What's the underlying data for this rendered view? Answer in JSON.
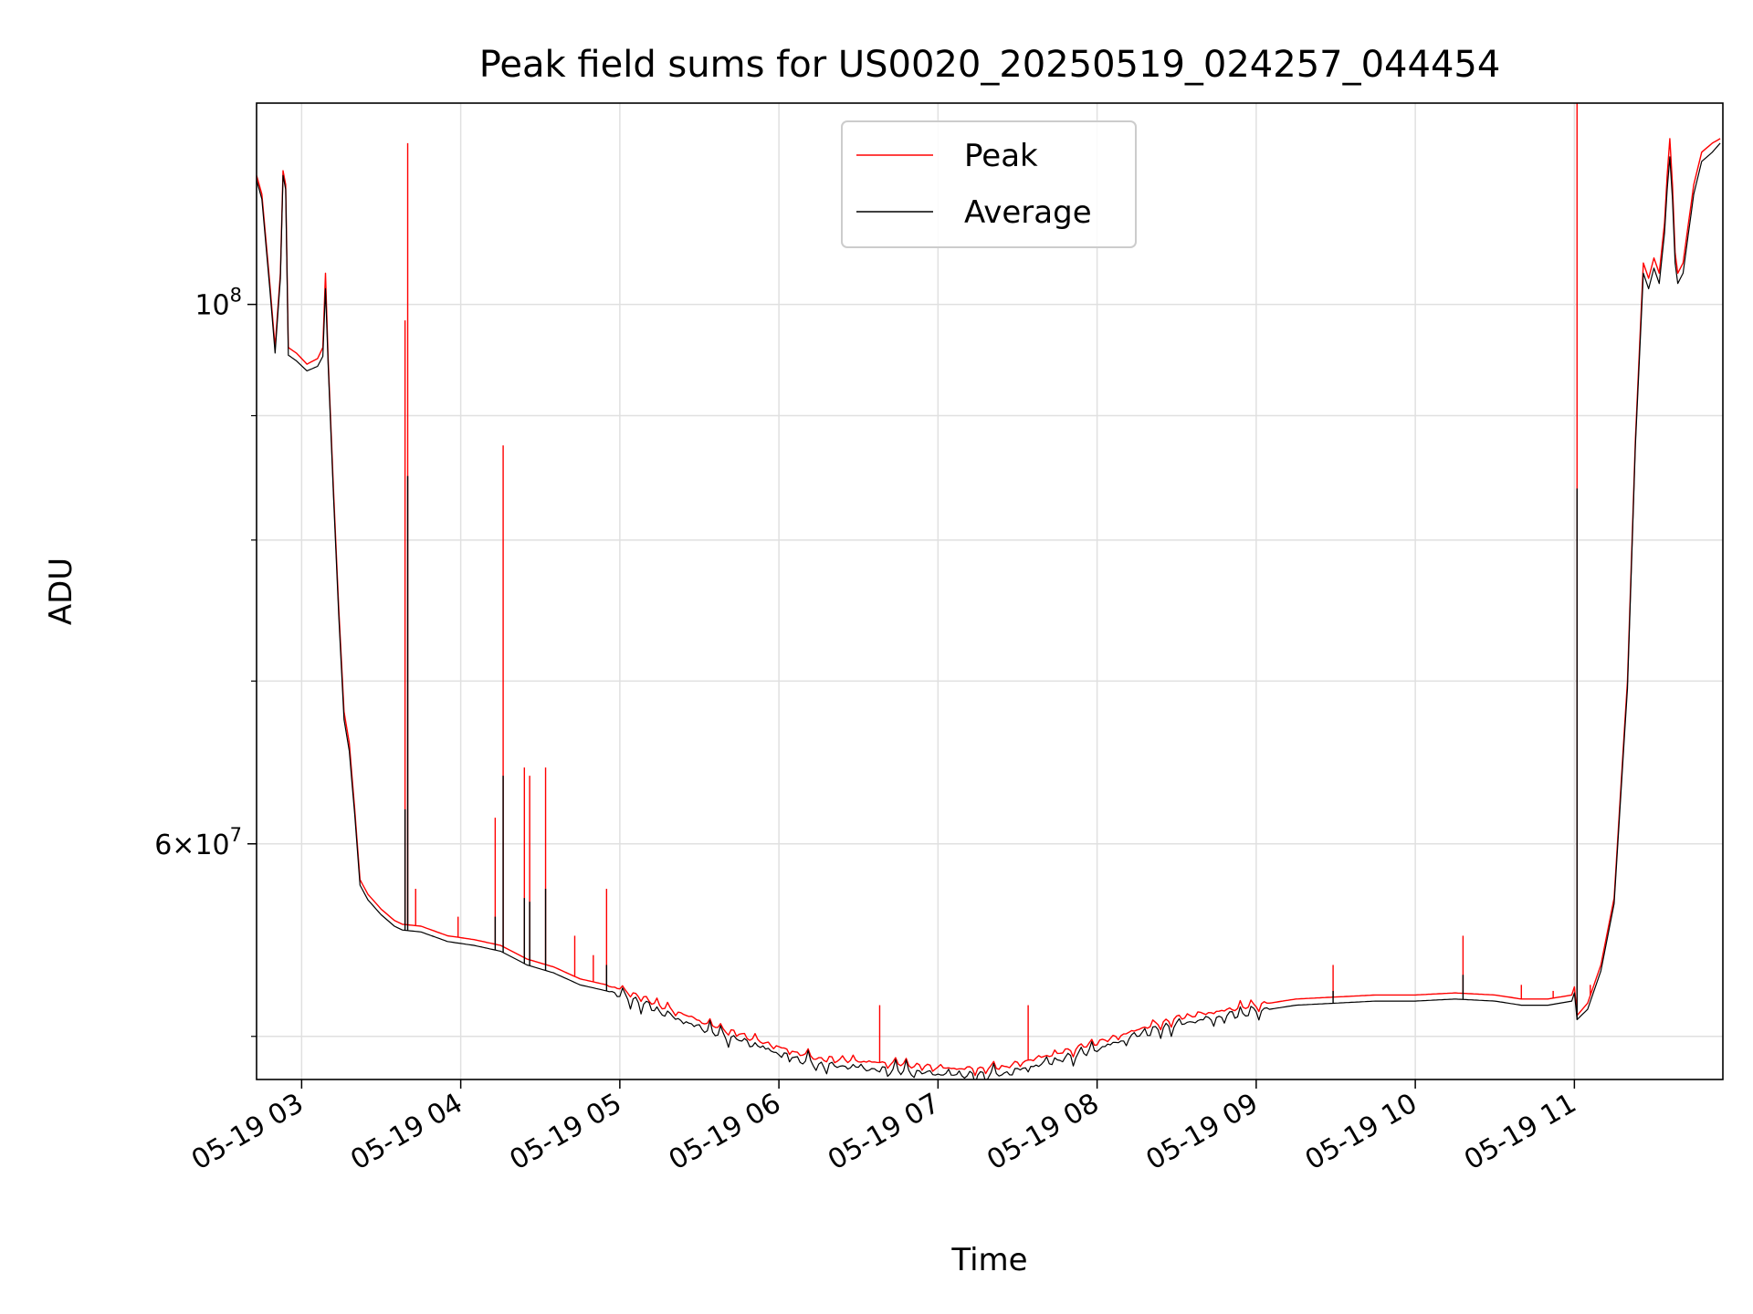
{
  "chart_data": {
    "type": "line",
    "title": "Peak field sums for US0020_20250519_024257_044454",
    "xlabel": "Time",
    "ylabel": "ADU",
    "y_scale": "log",
    "grid": true,
    "legend_position": "top-center",
    "xlim": [
      "2025-05-19 02:43",
      "2025-05-19 11:56"
    ],
    "ylim": [
      48000000,
      121000000
    ],
    "x_ticks": [
      {
        "time": "2025-05-19 03:00",
        "label": "05-19 03"
      },
      {
        "time": "2025-05-19 04:00",
        "label": "05-19 04"
      },
      {
        "time": "2025-05-19 05:00",
        "label": "05-19 05"
      },
      {
        "time": "2025-05-19 06:00",
        "label": "05-19 06"
      },
      {
        "time": "2025-05-19 07:00",
        "label": "05-19 07"
      },
      {
        "time": "2025-05-19 08:00",
        "label": "05-19 08"
      },
      {
        "time": "2025-05-19 09:00",
        "label": "05-19 09"
      },
      {
        "time": "2025-05-19 10:00",
        "label": "05-19 10"
      },
      {
        "time": "2025-05-19 11:00",
        "label": "05-19 11"
      }
    ],
    "y_major_ticks": [
      {
        "value": 100000000,
        "mantissa": "",
        "exponent": "8"
      },
      {
        "value": 60000000,
        "mantissa": "6",
        "exponent": "7"
      }
    ],
    "y_minor_ticks": [
      50000000,
      70000000,
      80000000,
      90000000
    ],
    "series": [
      {
        "name": "Peak",
        "color": "#ff0000",
        "points": [
          [
            "2025-05-19 02:43",
            113000000
          ],
          [
            "2025-05-19 02:45",
            111000000
          ],
          [
            "2025-05-19 02:48",
            102000000
          ],
          [
            "2025-05-19 02:50",
            96000000
          ],
          [
            "2025-05-19 02:52",
            103000000
          ],
          [
            "2025-05-19 02:53",
            113500000
          ],
          [
            "2025-05-19 02:54",
            112000000
          ],
          [
            "2025-05-19 02:55",
            96000000
          ],
          [
            "2025-05-19 02:58",
            95500000
          ],
          [
            "2025-05-19 03:02",
            94500000
          ],
          [
            "2025-05-19 03:06",
            95000000
          ],
          [
            "2025-05-19 03:08",
            96000000
          ],
          [
            "2025-05-19 03:09",
            103000000
          ],
          [
            "2025-05-19 03:10",
            95000000
          ],
          [
            "2025-05-19 03:12",
            84000000
          ],
          [
            "2025-05-19 03:14",
            75000000
          ],
          [
            "2025-05-19 03:16",
            68000000
          ],
          [
            "2025-05-19 03:18",
            66000000
          ],
          [
            "2025-05-19 03:20",
            62000000
          ],
          [
            "2025-05-19 03:22",
            58000000
          ],
          [
            "2025-05-19 03:25",
            57200000
          ],
          [
            "2025-05-19 03:30",
            56400000
          ],
          [
            "2025-05-19 03:35",
            55800000
          ],
          [
            "2025-05-19 03:38",
            55600000
          ],
          [
            "2025-05-19 03:45",
            55500000
          ],
          [
            "2025-05-19 03:55",
            55000000
          ],
          [
            "2025-05-19 04:05",
            54800000
          ],
          [
            "2025-05-19 04:15",
            54500000
          ],
          [
            "2025-05-19 04:25",
            53800000
          ],
          [
            "2025-05-19 04:35",
            53400000
          ],
          [
            "2025-05-19 04:45",
            52800000
          ],
          [
            "2025-05-19 04:55",
            52500000
          ],
          [
            "2025-05-19 05:05",
            52100000
          ],
          [
            "2025-05-19 05:15",
            51500000
          ],
          [
            "2025-05-19 05:25",
            51000000
          ],
          [
            "2025-05-19 05:35",
            50500000
          ],
          [
            "2025-05-19 05:45",
            50100000
          ],
          [
            "2025-05-19 05:55",
            49700000
          ],
          [
            "2025-05-19 06:05",
            49300000
          ],
          [
            "2025-05-19 06:15",
            49000000
          ],
          [
            "2025-05-19 06:25",
            48900000
          ],
          [
            "2025-05-19 06:35",
            48800000
          ],
          [
            "2025-05-19 06:45",
            48700000
          ],
          [
            "2025-05-19 06:55",
            48600000
          ],
          [
            "2025-05-19 07:05",
            48500000
          ],
          [
            "2025-05-19 07:15",
            48500000
          ],
          [
            "2025-05-19 07:25",
            48600000
          ],
          [
            "2025-05-19 07:35",
            48900000
          ],
          [
            "2025-05-19 07:45",
            49200000
          ],
          [
            "2025-05-19 07:55",
            49500000
          ],
          [
            "2025-05-19 08:05",
            49900000
          ],
          [
            "2025-05-19 08:15",
            50300000
          ],
          [
            "2025-05-19 08:25",
            50700000
          ],
          [
            "2025-05-19 08:35",
            51000000
          ],
          [
            "2025-05-19 08:45",
            51200000
          ],
          [
            "2025-05-19 08:55",
            51400000
          ],
          [
            "2025-05-19 09:05",
            51600000
          ],
          [
            "2025-05-19 09:15",
            51800000
          ],
          [
            "2025-05-19 09:30",
            51900000
          ],
          [
            "2025-05-19 09:45",
            52000000
          ],
          [
            "2025-05-19 10:00",
            52000000
          ],
          [
            "2025-05-19 10:15",
            52100000
          ],
          [
            "2025-05-19 10:30",
            52000000
          ],
          [
            "2025-05-19 10:40",
            51800000
          ],
          [
            "2025-05-19 10:50",
            51800000
          ],
          [
            "2025-05-19 10:59",
            52000000
          ],
          [
            "2025-05-19 11:00",
            52400000
          ],
          [
            "2025-05-19 11:01",
            51000000
          ],
          [
            "2025-05-19 11:05",
            51600000
          ],
          [
            "2025-05-19 11:10",
            53500000
          ],
          [
            "2025-05-19 11:15",
            57000000
          ],
          [
            "2025-05-19 11:20",
            70000000
          ],
          [
            "2025-05-19 11:23",
            88000000
          ],
          [
            "2025-05-19 11:26",
            104000000
          ],
          [
            "2025-05-19 11:28",
            102500000
          ],
          [
            "2025-05-19 11:30",
            104500000
          ],
          [
            "2025-05-19 11:32",
            103000000
          ],
          [
            "2025-05-19 11:34",
            108000000
          ],
          [
            "2025-05-19 11:35",
            113000000
          ],
          [
            "2025-05-19 11:36",
            117000000
          ],
          [
            "2025-05-19 11:37",
            112000000
          ],
          [
            "2025-05-19 11:38",
            105000000
          ],
          [
            "2025-05-19 11:39",
            103000000
          ],
          [
            "2025-05-19 11:41",
            104000000
          ],
          [
            "2025-05-19 11:45",
            112000000
          ],
          [
            "2025-05-19 11:48",
            115500000
          ],
          [
            "2025-05-19 11:52",
            116500000
          ],
          [
            "2025-05-19 11:55",
            117000000
          ]
        ],
        "spikes": [
          [
            "2025-05-19 03:39",
            98500000
          ],
          [
            "2025-05-19 03:40",
            116500000
          ],
          [
            "2025-05-19 03:43",
            57500000
          ],
          [
            "2025-05-19 03:59",
            56000000
          ],
          [
            "2025-05-19 04:13",
            61500000
          ],
          [
            "2025-05-19 04:16",
            87500000
          ],
          [
            "2025-05-19 04:24",
            64500000
          ],
          [
            "2025-05-19 04:26",
            64000000
          ],
          [
            "2025-05-19 04:32",
            64500000
          ],
          [
            "2025-05-19 04:43",
            55000000
          ],
          [
            "2025-05-19 04:50",
            54000000
          ],
          [
            "2025-05-19 04:55",
            57500000
          ],
          [
            "2025-05-19 06:38",
            51500000
          ],
          [
            "2025-05-19 07:34",
            51500000
          ],
          [
            "2025-05-19 09:29",
            53500000
          ],
          [
            "2025-05-19 10:18",
            55000000
          ],
          [
            "2025-05-19 10:40",
            52500000
          ],
          [
            "2025-05-19 10:52",
            52200000
          ],
          [
            "2025-05-19 11:01",
            121000000
          ],
          [
            "2025-05-19 11:06",
            52500000
          ]
        ]
      },
      {
        "name": "Average",
        "color": "#000000",
        "points": [
          [
            "2025-05-19 02:43",
            112500000
          ],
          [
            "2025-05-19 02:45",
            110500000
          ],
          [
            "2025-05-19 02:48",
            101500000
          ],
          [
            "2025-05-19 02:50",
            95500000
          ],
          [
            "2025-05-19 02:52",
            102500000
          ],
          [
            "2025-05-19 02:53",
            113000000
          ],
          [
            "2025-05-19 02:54",
            111500000
          ],
          [
            "2025-05-19 02:55",
            95300000
          ],
          [
            "2025-05-19 02:58",
            94800000
          ],
          [
            "2025-05-19 03:02",
            93900000
          ],
          [
            "2025-05-19 03:06",
            94300000
          ],
          [
            "2025-05-19 03:08",
            95200000
          ],
          [
            "2025-05-19 03:09",
            101500000
          ],
          [
            "2025-05-19 03:10",
            94500000
          ],
          [
            "2025-05-19 03:12",
            83500000
          ],
          [
            "2025-05-19 03:14",
            74500000
          ],
          [
            "2025-05-19 03:16",
            67500000
          ],
          [
            "2025-05-19 03:18",
            65500000
          ],
          [
            "2025-05-19 03:20",
            61700000
          ],
          [
            "2025-05-19 03:22",
            57700000
          ],
          [
            "2025-05-19 03:25",
            56900000
          ],
          [
            "2025-05-19 03:30",
            56100000
          ],
          [
            "2025-05-19 03:35",
            55500000
          ],
          [
            "2025-05-19 03:38",
            55300000
          ],
          [
            "2025-05-19 03:45",
            55200000
          ],
          [
            "2025-05-19 03:55",
            54700000
          ],
          [
            "2025-05-19 04:05",
            54500000
          ],
          [
            "2025-05-19 04:15",
            54200000
          ],
          [
            "2025-05-19 04:25",
            53500000
          ],
          [
            "2025-05-19 04:35",
            53100000
          ],
          [
            "2025-05-19 04:45",
            52500000
          ],
          [
            "2025-05-19 04:55",
            52200000
          ],
          [
            "2025-05-19 05:05",
            51800000
          ],
          [
            "2025-05-19 05:15",
            51200000
          ],
          [
            "2025-05-19 05:25",
            50700000
          ],
          [
            "2025-05-19 05:35",
            50200000
          ],
          [
            "2025-05-19 05:45",
            49800000
          ],
          [
            "2025-05-19 05:55",
            49400000
          ],
          [
            "2025-05-19 06:05",
            49000000
          ],
          [
            "2025-05-19 06:15",
            48700000
          ],
          [
            "2025-05-19 06:25",
            48600000
          ],
          [
            "2025-05-19 06:35",
            48500000
          ],
          [
            "2025-05-19 06:45",
            48400000
          ],
          [
            "2025-05-19 06:55",
            48300000
          ],
          [
            "2025-05-19 07:05",
            48200000
          ],
          [
            "2025-05-19 07:15",
            48200000
          ],
          [
            "2025-05-19 07:25",
            48300000
          ],
          [
            "2025-05-19 07:35",
            48600000
          ],
          [
            "2025-05-19 07:45",
            48900000
          ],
          [
            "2025-05-19 07:55",
            49200000
          ],
          [
            "2025-05-19 08:05",
            49600000
          ],
          [
            "2025-05-19 08:15",
            50000000
          ],
          [
            "2025-05-19 08:25",
            50400000
          ],
          [
            "2025-05-19 08:35",
            50700000
          ],
          [
            "2025-05-19 08:45",
            50900000
          ],
          [
            "2025-05-19 08:55",
            51100000
          ],
          [
            "2025-05-19 09:05",
            51300000
          ],
          [
            "2025-05-19 09:15",
            51500000
          ],
          [
            "2025-05-19 09:30",
            51600000
          ],
          [
            "2025-05-19 09:45",
            51700000
          ],
          [
            "2025-05-19 10:00",
            51700000
          ],
          [
            "2025-05-19 10:15",
            51800000
          ],
          [
            "2025-05-19 10:30",
            51700000
          ],
          [
            "2025-05-19 10:40",
            51500000
          ],
          [
            "2025-05-19 10:50",
            51500000
          ],
          [
            "2025-05-19 10:59",
            51700000
          ],
          [
            "2025-05-19 11:00",
            52100000
          ],
          [
            "2025-05-19 11:01",
            50800000
          ],
          [
            "2025-05-19 11:05",
            51300000
          ],
          [
            "2025-05-19 11:10",
            53200000
          ],
          [
            "2025-05-19 11:15",
            56700000
          ],
          [
            "2025-05-19 11:20",
            69500000
          ],
          [
            "2025-05-19 11:23",
            87500000
          ],
          [
            "2025-05-19 11:26",
            103000000
          ],
          [
            "2025-05-19 11:28",
            101500000
          ],
          [
            "2025-05-19 11:30",
            103500000
          ],
          [
            "2025-05-19 11:32",
            102000000
          ],
          [
            "2025-05-19 11:34",
            107000000
          ],
          [
            "2025-05-19 11:35",
            111500000
          ],
          [
            "2025-05-19 11:36",
            115000000
          ],
          [
            "2025-05-19 11:37",
            110500000
          ],
          [
            "2025-05-19 11:38",
            104000000
          ],
          [
            "2025-05-19 11:39",
            102000000
          ],
          [
            "2025-05-19 11:41",
            103000000
          ],
          [
            "2025-05-19 11:45",
            111000000
          ],
          [
            "2025-05-19 11:48",
            114500000
          ],
          [
            "2025-05-19 11:52",
            115500000
          ],
          [
            "2025-05-19 11:55",
            116500000
          ]
        ],
        "spikes": [
          [
            "2025-05-19 03:39",
            62000000
          ],
          [
            "2025-05-19 03:40",
            85000000
          ],
          [
            "2025-05-19 04:13",
            56000000
          ],
          [
            "2025-05-19 04:16",
            64000000
          ],
          [
            "2025-05-19 04:24",
            57000000
          ],
          [
            "2025-05-19 04:26",
            56800000
          ],
          [
            "2025-05-19 04:32",
            57500000
          ],
          [
            "2025-05-19 04:55",
            53500000
          ],
          [
            "2025-05-19 09:29",
            52200000
          ],
          [
            "2025-05-19 10:18",
            53000000
          ],
          [
            "2025-05-19 11:01",
            84000000
          ]
        ]
      }
    ]
  }
}
